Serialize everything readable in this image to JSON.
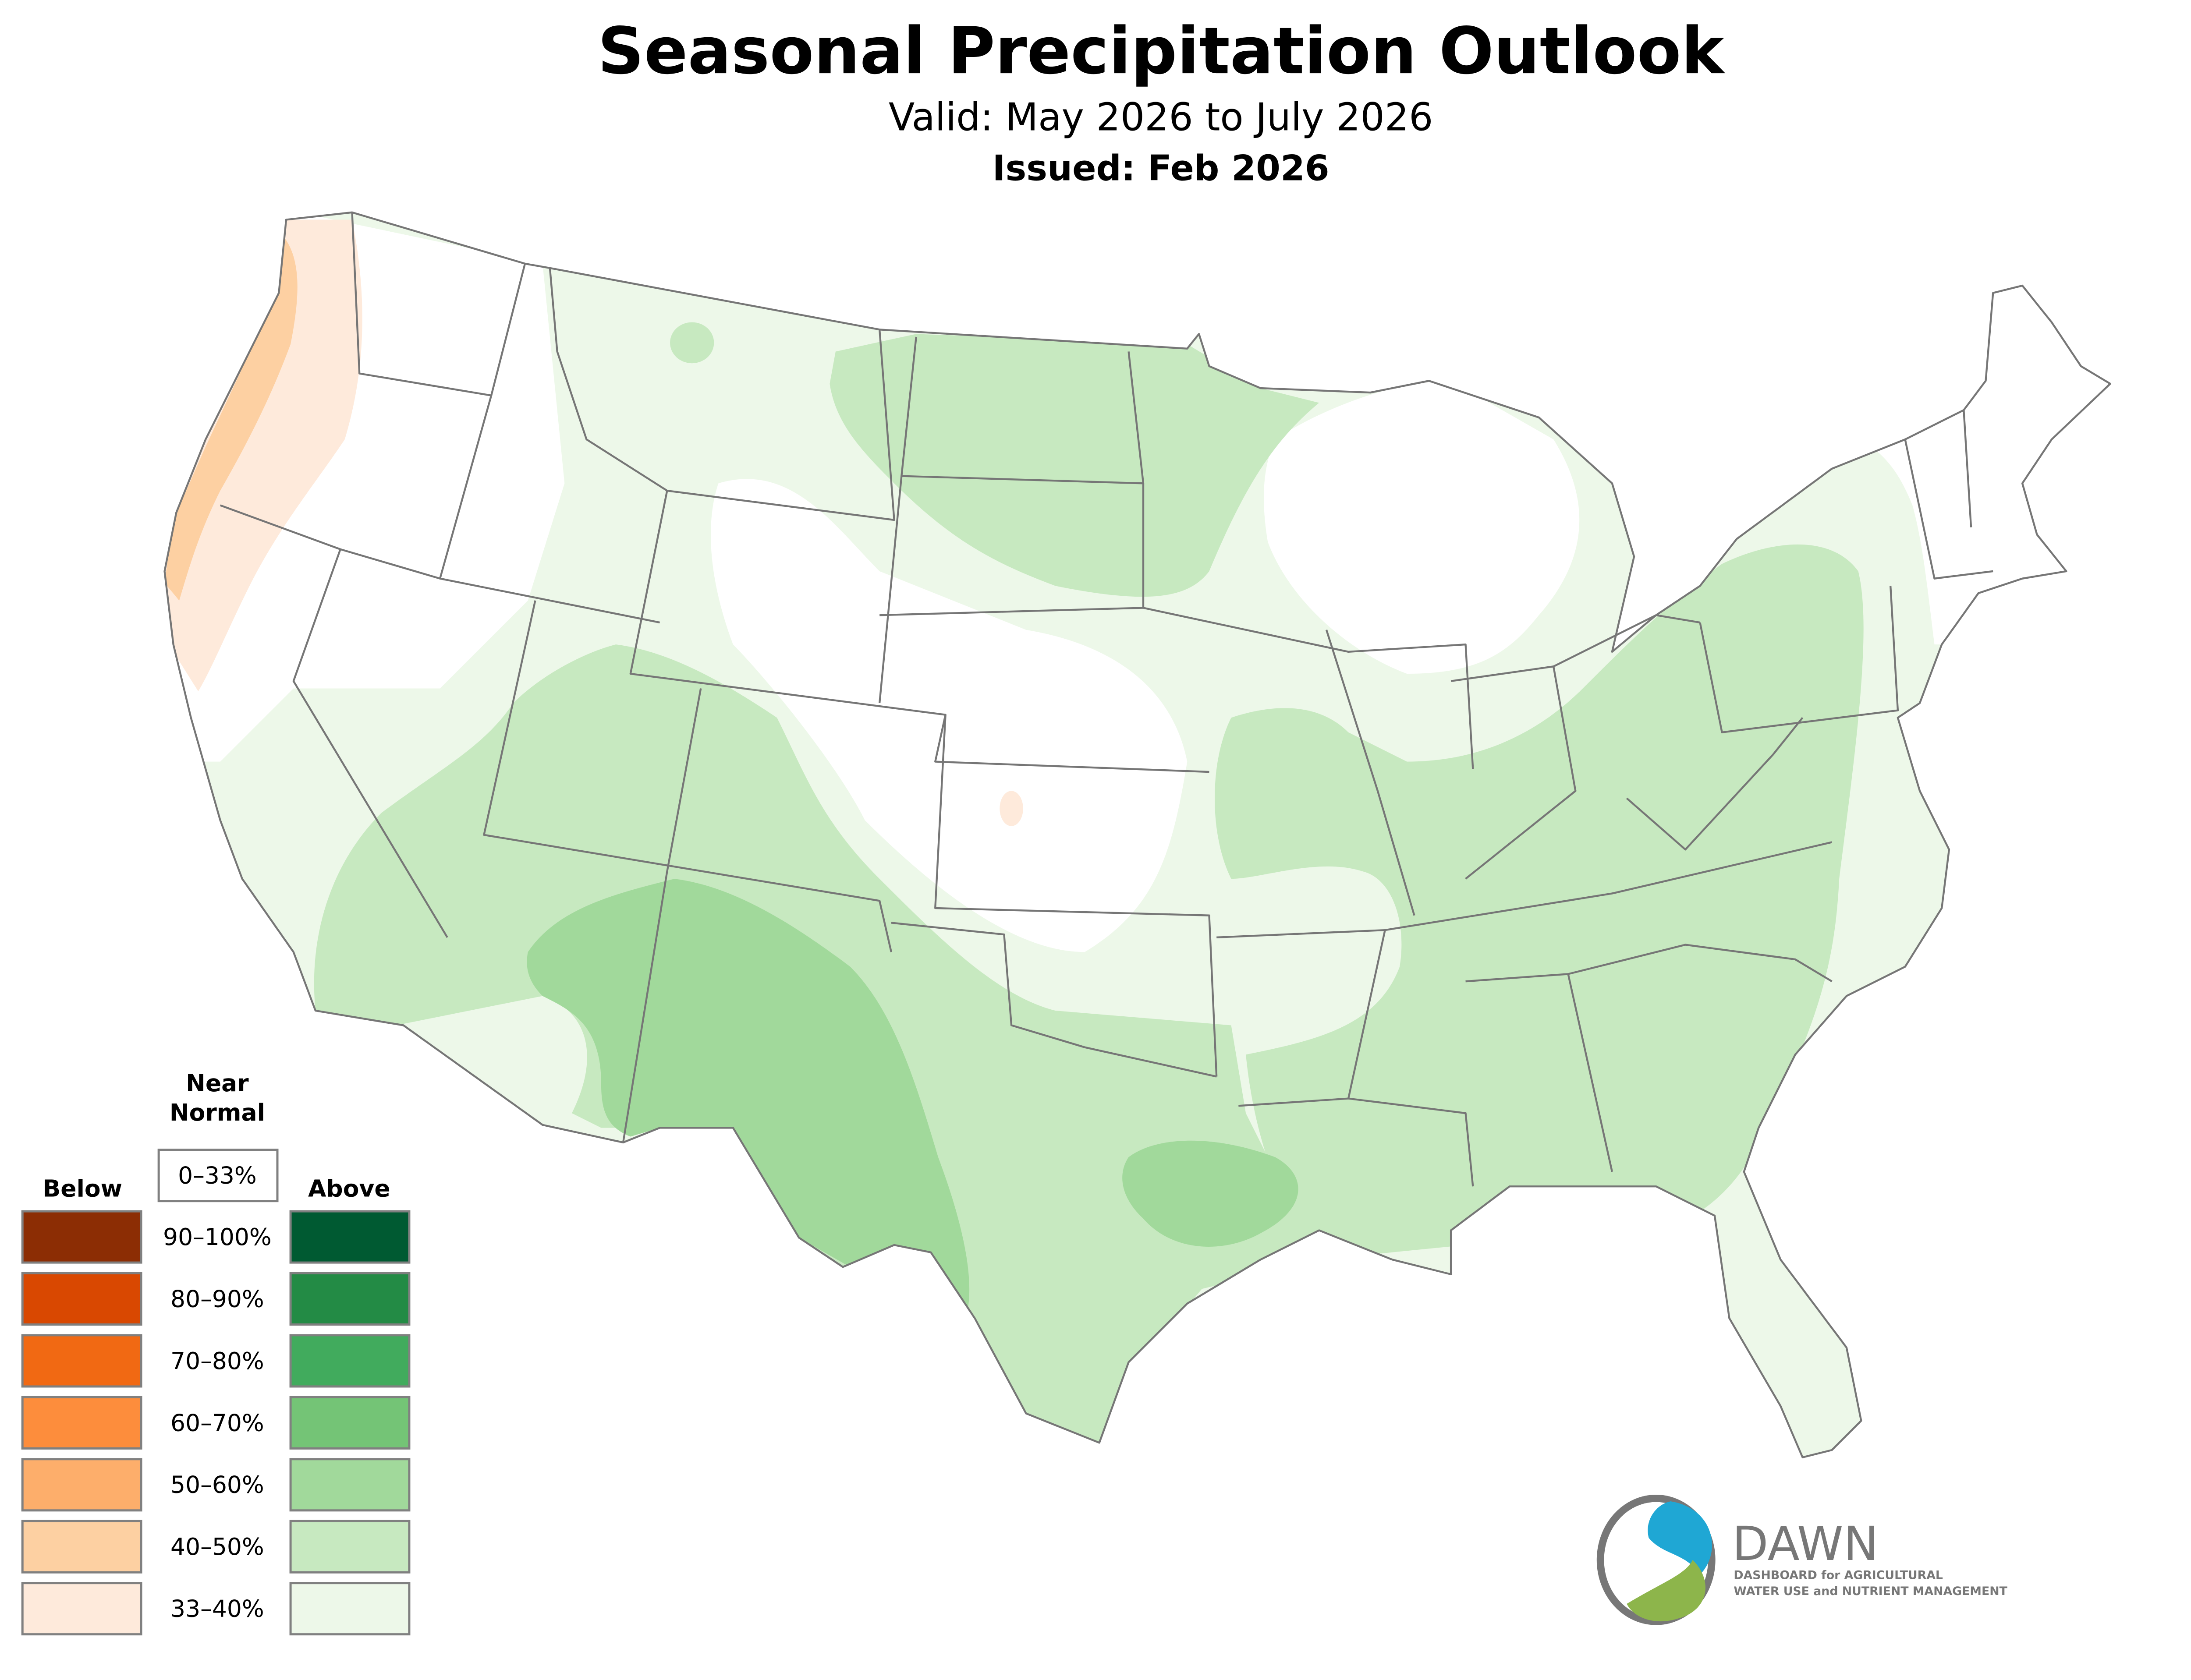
{
  "header": {
    "title": "Seasonal Precipitation Outlook",
    "valid": "Valid: May 2026 to July 2026",
    "issued": "Issued: Feb 2026"
  },
  "legend": {
    "near_normal_line1": "Near",
    "near_normal_line2": "Normal",
    "near_normal_range": "0–33%",
    "below_label": "Below",
    "above_label": "Above",
    "ranges": [
      "90–100%",
      "80–90%",
      "70–80%",
      "60–70%",
      "50–60%",
      "40–50%",
      "33–40%"
    ],
    "below_colors": [
      "#8c2d04",
      "#d94801",
      "#f16913",
      "#fd8d3c",
      "#fdae6b",
      "#fdd0a2",
      "#feeadb"
    ],
    "above_colors": [
      "#005a32",
      "#238b45",
      "#41ab5d",
      "#74c476",
      "#a1d99b",
      "#c7e9c0",
      "#edf8e9"
    ]
  },
  "logo": {
    "name": "DAWN",
    "tagline_line1": "DASHBOARD for AGRICULTURAL",
    "tagline_line2": "WATER USE and NUTRIENT MANAGEMENT",
    "colors": {
      "blue": "#1fa7d4",
      "green": "#8db54b",
      "gray": "#777777"
    }
  }
}
